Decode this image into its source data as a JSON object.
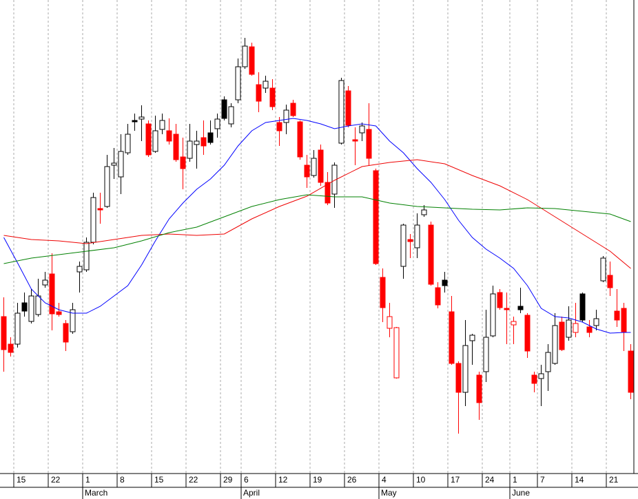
{
  "chart_data": {
    "type": "candlestick",
    "categories": [
      null,
      null,
      "15",
      null,
      null,
      null,
      null,
      "22",
      null,
      null,
      null,
      null,
      "1",
      null,
      null,
      null,
      null,
      "8",
      null,
      null,
      null,
      null,
      "15",
      null,
      null,
      null,
      null,
      "22",
      null,
      null,
      null,
      null,
      "29",
      null,
      null,
      "6",
      null,
      null,
      null,
      null,
      "12",
      null,
      null,
      null,
      null,
      "19",
      null,
      null,
      null,
      null,
      "26",
      null,
      null,
      null,
      null,
      "4",
      null,
      null,
      null,
      null,
      "10",
      null,
      null,
      null,
      null,
      "17",
      null,
      null,
      null,
      null,
      "24",
      null,
      null,
      null,
      "1",
      null,
      null,
      null,
      "7",
      null,
      null,
      null,
      null,
      "14",
      null,
      null,
      null,
      null,
      "21",
      null,
      null,
      null
    ],
    "months": [
      {
        "label": "March",
        "start": 12
      },
      {
        "label": "April",
        "start": 35
      },
      {
        "label": "May",
        "start": 55
      },
      {
        "label": "June",
        "start": 74
      }
    ],
    "open": [
      240,
      200,
      200,
      260,
      233,
      243,
      286,
      302,
      247,
      230,
      218,
      305,
      308,
      348,
      397,
      400,
      460,
      443,
      478,
      525,
      527,
      520,
      480,
      512,
      510,
      505,
      472,
      470,
      490,
      500,
      507,
      513,
      555,
      520,
      555,
      603,
      632,
      577,
      572,
      572,
      522,
      522,
      550,
      523,
      460,
      445,
      482,
      435,
      418,
      492,
      568,
      497,
      507,
      512,
      452,
      297,
      223,
      151,
      313,
      352,
      340,
      388,
      373,
      282,
      293,
      247,
      172,
      130,
      205,
      155,
      160,
      212,
      275,
      252,
      228,
      255,
      242,
      155,
      150,
      160,
      172,
      232,
      210,
      217,
      273,
      225,
      227,
      292,
      300,
      248,
      252,
      190
    ],
    "high": [
      268,
      210,
      260,
      275,
      280,
      295,
      305,
      332,
      260,
      235,
      260,
      320,
      355,
      420,
      420,
      475,
      485,
      505,
      520,
      535,
      547,
      525,
      532,
      535,
      528,
      520,
      500,
      520,
      510,
      525,
      525,
      535,
      560,
      550,
      615,
      645,
      638,
      595,
      590,
      585,
      530,
      548,
      555,
      525,
      475,
      482,
      490,
      450,
      464,
      587,
      575,
      515,
      522,
      550,
      455,
      310,
      260,
      225,
      375,
      360,
      390,
      402,
      378,
      290,
      305,
      270,
      175,
      235,
      215,
      160,
      250,
      285,
      280,
      275,
      240,
      282,
      245,
      160,
      170,
      200,
      245,
      240,
      255,
      260,
      275,
      235,
      250,
      328,
      320,
      280,
      260,
      200
    ],
    "low": [
      160,
      182,
      195,
      240,
      230,
      240,
      282,
      220,
      240,
      190,
      215,
      275,
      305,
      345,
      375,
      398,
      440,
      418,
      475,
      510,
      495,
      472,
      478,
      505,
      490,
      465,
      425,
      465,
      455,
      475,
      490,
      500,
      525,
      515,
      550,
      600,
      590,
      537,
      565,
      540,
      488,
      505,
      530,
      468,
      427,
      442,
      430,
      402,
      398,
      490,
      515,
      460,
      495,
      460,
      315,
      232,
      210,
      150,
      295,
      325,
      325,
      385,
      285,
      252,
      275,
      170,
      70,
      110,
      170,
      90,
      145,
      210,
      250,
      200,
      200,
      245,
      180,
      130,
      110,
      132,
      170,
      190,
      205,
      210,
      232,
      210,
      220,
      290,
      270,
      225,
      190,
      120
    ],
    "close": [
      192,
      188,
      245,
      248,
      270,
      270,
      293,
      244,
      243,
      203,
      250,
      313,
      348,
      413,
      395,
      458,
      463,
      480,
      505,
      523,
      530,
      475,
      510,
      525,
      495,
      468,
      455,
      495,
      495,
      488,
      493,
      527,
      528,
      545,
      603,
      633,
      592,
      553,
      582,
      545,
      510,
      540,
      532,
      472,
      443,
      470,
      435,
      405,
      460,
      583,
      518,
      495,
      517,
      470,
      317,
      253,
      240,
      224,
      373,
      349,
      373,
      395,
      287,
      257,
      285,
      172,
      130,
      198,
      213,
      115,
      210,
      273,
      253,
      250,
      233,
      250,
      190,
      143,
      157,
      188,
      227,
      192,
      235,
      230,
      235,
      217,
      237,
      325,
      282,
      235,
      218,
      130
    ],
    "up_color": "#000000",
    "down_color": "#ff0000",
    "series": [
      {
        "color": "#0000ff",
        "x": [
          0,
          2,
          4,
          6,
          8,
          10,
          12,
          14,
          16,
          18,
          20,
          22,
          24,
          26,
          28,
          30,
          32,
          34,
          36,
          38,
          40,
          42,
          44,
          46,
          48,
          50,
          52,
          54,
          56,
          58,
          60,
          62,
          64,
          66,
          68,
          70,
          72,
          74,
          76,
          78,
          80,
          82,
          84,
          86,
          88,
          90,
          91
        ],
        "values": [
          355,
          318,
          280,
          260,
          250,
          245,
          245,
          255,
          270,
          285,
          315,
          350,
          382,
          405,
          425,
          440,
          460,
          488,
          510,
          522,
          525,
          528,
          525,
          520,
          513,
          517,
          520,
          517,
          495,
          478,
          455,
          435,
          410,
          380,
          355,
          338,
          325,
          310,
          285,
          252,
          240,
          238,
          232,
          222,
          216,
          217,
          217
        ]
      },
      {
        "color": "#ee0000",
        "x": [
          0,
          4,
          8,
          12,
          16,
          20,
          24,
          28,
          32,
          36,
          40,
          44,
          48,
          52,
          56,
          60,
          64,
          68,
          72,
          76,
          80,
          84,
          88,
          91
        ],
        "values": [
          358,
          352,
          350,
          346,
          352,
          358,
          360,
          358,
          360,
          382,
          400,
          415,
          438,
          458,
          464,
          468,
          462,
          445,
          430,
          410,
          385,
          360,
          335,
          310
        ]
      },
      {
        "color": "#008000",
        "x": [
          0,
          4,
          8,
          12,
          16,
          20,
          24,
          28,
          32,
          36,
          40,
          44,
          48,
          52,
          56,
          60,
          64,
          68,
          72,
          76,
          80,
          84,
          88,
          91
        ],
        "values": [
          317,
          325,
          330,
          335,
          340,
          350,
          362,
          370,
          385,
          400,
          410,
          417,
          414,
          414,
          405,
          400,
          398,
          396,
          395,
          398,
          397,
          393,
          389,
          378
        ]
      }
    ],
    "ylim": [
      12,
      700
    ],
    "grid": true
  }
}
